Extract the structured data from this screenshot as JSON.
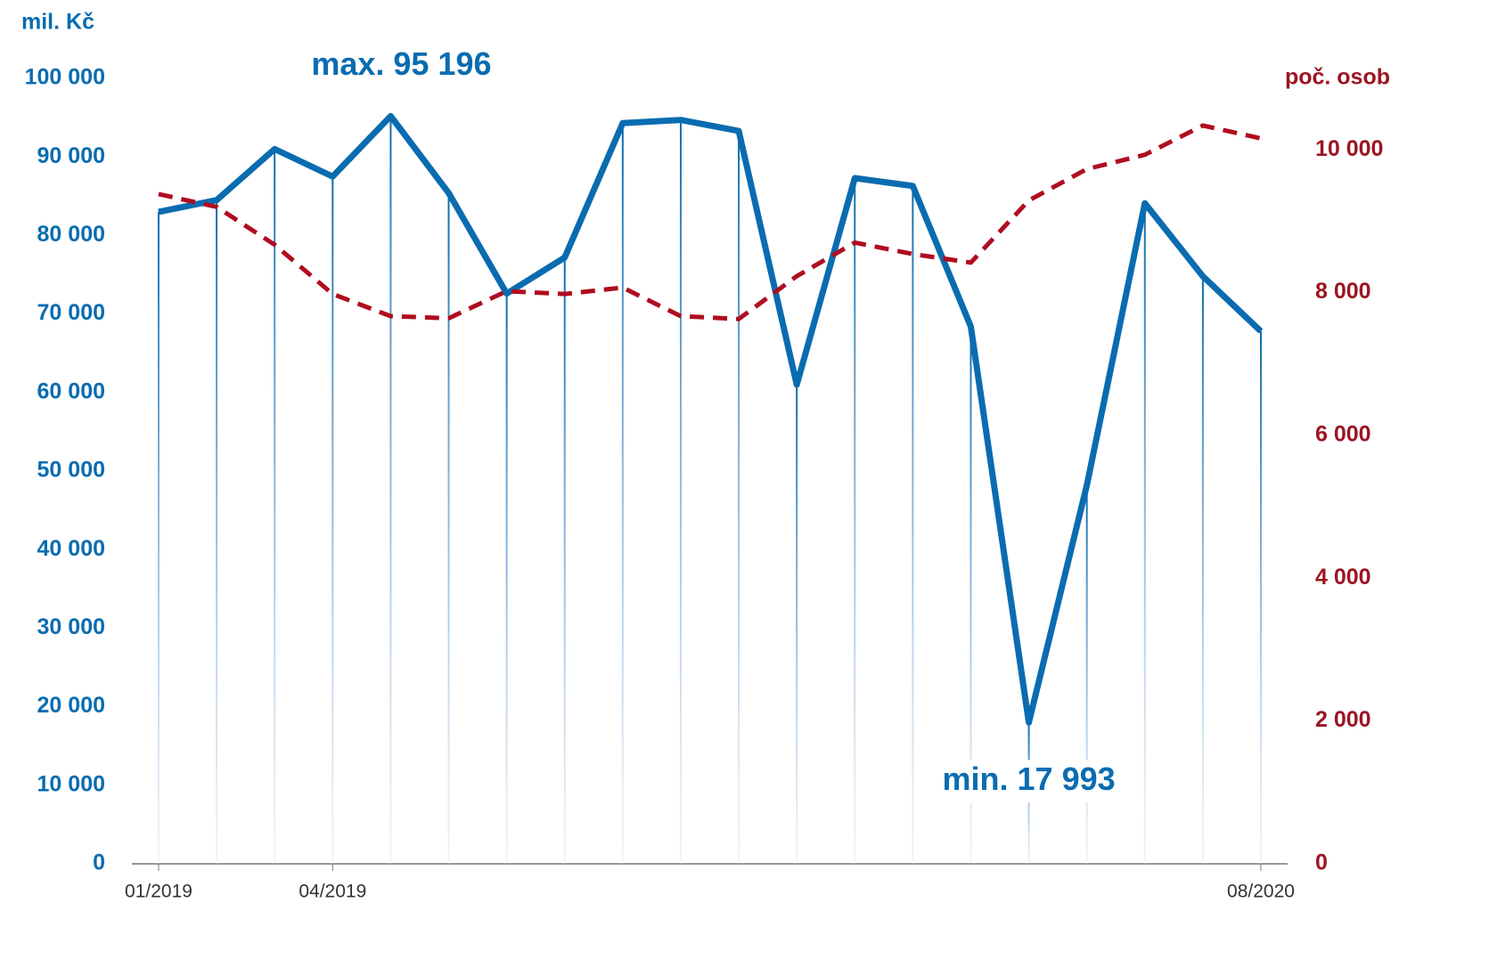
{
  "chart_data": {
    "type": "line",
    "y_label": "mil. Kč",
    "y2_label": "poč.  osob",
    "annotations": [
      {
        "text": "max. 95 196",
        "value": 95196,
        "index": 4
      },
      {
        "text": "min. 17 993",
        "value": 17993,
        "index": 15
      }
    ],
    "categories": [
      "01/2019",
      null,
      null,
      "04/2019",
      null,
      null,
      null,
      null,
      null,
      null,
      null,
      null,
      null,
      null,
      null,
      null,
      null,
      null,
      null,
      "08/2020"
    ],
    "series": [
      {
        "color": "#0a6cb0",
        "style": "solid",
        "values": [
          83000,
          84500,
          91000,
          87500,
          95196,
          85400,
          72600,
          77200,
          94300,
          94700,
          93300,
          61000,
          87300,
          86300,
          68400,
          17993,
          48200,
          84100,
          74800,
          67800
        ]
      },
      {
        "color": "#b00d1f",
        "style": "dashed",
        "axis": "y2",
        "values": [
          9380,
          9200,
          8670,
          7980,
          7670,
          7640,
          8020,
          7980,
          8070,
          7670,
          7630,
          8230,
          8700,
          8540,
          8420,
          9290,
          9730,
          9930,
          10340,
          10160
        ]
      }
    ],
    "ylim": [
      0,
      100000
    ],
    "yticks": [
      0,
      {
        "value": 10000,
        "label": "10 000"
      },
      {
        "value": 20000,
        "label": "20 000"
      },
      {
        "value": 30000,
        "label": "30 000"
      },
      {
        "value": 40000,
        "label": "40 000"
      },
      {
        "value": 50000,
        "label": "50 000"
      },
      {
        "value": 60000,
        "label": "60 000"
      },
      {
        "value": 70000,
        "label": "70 000"
      },
      {
        "value": 80000,
        "label": "80 000"
      },
      {
        "value": 90000,
        "label": "90 000"
      },
      {
        "value": 100000,
        "label": "100 000"
      }
    ],
    "y2lim": [
      0,
      11000
    ],
    "y2ticks": [
      0,
      {
        "value": 2000,
        "label": "2 000"
      },
      {
        "value": 4000,
        "label": "4 000"
      },
      {
        "value": 6000,
        "label": "6 000"
      },
      {
        "value": 8000,
        "label": "8 000"
      },
      {
        "value": 10000,
        "label": "10 000"
      }
    ],
    "y_color": "#0a6cb0",
    "y2_color": "#9c1522"
  }
}
